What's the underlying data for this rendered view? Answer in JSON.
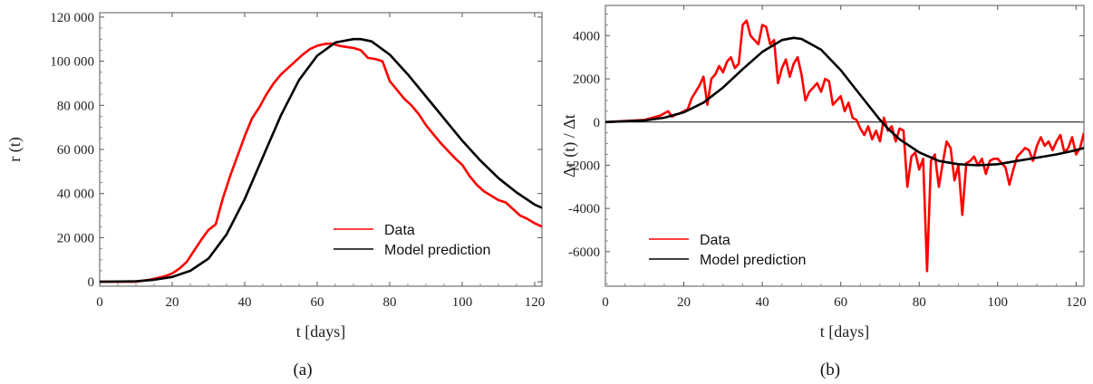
{
  "chart_data": [
    {
      "type": "line",
      "panel_label": "(a)",
      "xlabel": "t [days]",
      "ylabel": "r (t)",
      "xlim": [
        0,
        122
      ],
      "ylim": [
        -2000,
        122000
      ],
      "xticks": [
        0,
        20,
        40,
        60,
        80,
        100,
        120
      ],
      "xtick_labels": [
        "0",
        "20",
        "40",
        "60",
        "80",
        "100",
        "120"
      ],
      "yticks": [
        0,
        20000,
        40000,
        60000,
        80000,
        100000,
        120000
      ],
      "ytick_labels": [
        "0",
        "20 000",
        "40 000",
        "60 000",
        "80 000",
        "100 000",
        "120 000"
      ],
      "zero_line": false,
      "legend": {
        "placement": "bottom-right",
        "entries": [
          "Data",
          "Model prediction"
        ]
      },
      "series": [
        {
          "name": "Data",
          "color": "#ff0000",
          "x": [
            0,
            10,
            14,
            18,
            20,
            22,
            24,
            26,
            28,
            30,
            32,
            34,
            36,
            38,
            40,
            42,
            44,
            46,
            48,
            50,
            52,
            54,
            56,
            58,
            60,
            62,
            64,
            66,
            68,
            70,
            72,
            74,
            76,
            78,
            80,
            82,
            84,
            86,
            88,
            90,
            92,
            94,
            96,
            98,
            100,
            102,
            104,
            106,
            108,
            110,
            112,
            114,
            116,
            118,
            120,
            122
          ],
          "y": [
            0,
            0,
            1000,
            2500,
            3800,
            6000,
            9000,
            14000,
            19000,
            23500,
            26000,
            38000,
            48000,
            57000,
            66000,
            74000,
            79000,
            85000,
            90000,
            94000,
            97000,
            100000,
            103000,
            105500,
            107000,
            107800,
            108000,
            107000,
            106500,
            106000,
            105000,
            101500,
            101000,
            100000,
            91000,
            87000,
            83000,
            80000,
            76000,
            71000,
            67000,
            63000,
            59500,
            56000,
            53000,
            48000,
            44000,
            41000,
            39000,
            37000,
            36000,
            33000,
            30000,
            28500,
            26500,
            25000
          ]
        },
        {
          "name": "Model prediction",
          "color": "#000000",
          "x": [
            0,
            10,
            15,
            20,
            25,
            30,
            35,
            40,
            45,
            50,
            55,
            60,
            65,
            70,
            72,
            75,
            80,
            85,
            90,
            95,
            100,
            105,
            110,
            115,
            120,
            122
          ],
          "y": [
            0,
            200,
            900,
            2200,
            5000,
            10500,
            21500,
            37500,
            56500,
            75500,
            91500,
            102500,
            108500,
            110000,
            110000,
            109000,
            103000,
            94000,
            84000,
            74000,
            64000,
            55000,
            47000,
            40500,
            35000,
            33500
          ]
        }
      ]
    },
    {
      "type": "line",
      "panel_label": "(b)",
      "xlabel": "t [days]",
      "ylabel": "Δr (t) / Δt",
      "xlim": [
        0,
        122
      ],
      "ylim": [
        -7600,
        5400
      ],
      "xticks": [
        0,
        20,
        40,
        60,
        80,
        100,
        120
      ],
      "xtick_labels": [
        "0",
        "20",
        "40",
        "60",
        "80",
        "100",
        "120"
      ],
      "yticks": [
        -6000,
        -4000,
        -2000,
        0,
        2000,
        4000
      ],
      "ytick_labels": [
        "-6000",
        "-4000",
        "-2000",
        "0",
        "2000",
        "4000"
      ],
      "zero_line": true,
      "legend": {
        "placement": "bottom-left",
        "entries": [
          "Data",
          "Model prediction"
        ]
      },
      "series": [
        {
          "name": "Data",
          "color": "#ff0000",
          "x": [
            0,
            10,
            12,
            14,
            16,
            17,
            18,
            19,
            20,
            21,
            22,
            23,
            24,
            25,
            26,
            27,
            28,
            29,
            30,
            31,
            32,
            33,
            34,
            35,
            36,
            37,
            38,
            39,
            40,
            41,
            42,
            43,
            44,
            45,
            46,
            47,
            48,
            49,
            50,
            51,
            52,
            53,
            54,
            55,
            56,
            57,
            58,
            59,
            60,
            61,
            62,
            63,
            64,
            65,
            66,
            67,
            68,
            69,
            70,
            71,
            72,
            73,
            74,
            75,
            76,
            77,
            78,
            79,
            80,
            81,
            82,
            83,
            84,
            85,
            86,
            87,
            88,
            89,
            90,
            91,
            92,
            93,
            94,
            95,
            96,
            97,
            98,
            99,
            100,
            101,
            102,
            103,
            104,
            105,
            106,
            107,
            108,
            109,
            110,
            111,
            112,
            113,
            114,
            115,
            116,
            117,
            118,
            119,
            120,
            121,
            122
          ],
          "y": [
            0,
            100,
            200,
            300,
            500,
            250,
            350,
            400,
            500,
            600,
            1100,
            1400,
            1700,
            2100,
            800,
            2000,
            2200,
            2600,
            2300,
            2800,
            3000,
            2500,
            2700,
            4500,
            4700,
            4000,
            3800,
            3600,
            4500,
            4400,
            3600,
            3800,
            1800,
            2500,
            2900,
            2100,
            2700,
            3000,
            2200,
            1000,
            1400,
            1600,
            1800,
            1400,
            2000,
            1900,
            800,
            1000,
            1200,
            500,
            900,
            200,
            100,
            -300,
            -600,
            -200,
            -800,
            -400,
            -900,
            200,
            -400,
            -200,
            -900,
            -300,
            -400,
            -3000,
            -1600,
            -1400,
            -2200,
            -1700,
            -6900,
            -1800,
            -1500,
            -3000,
            -1900,
            -900,
            -1200,
            -2700,
            -2000,
            -4300,
            -1900,
            -1800,
            -1600,
            -2000,
            -1700,
            -2400,
            -1800,
            -1700,
            -1700,
            -1900,
            -2100,
            -2900,
            -2200,
            -1600,
            -1400,
            -1200,
            -1300,
            -1800,
            -1100,
            -700,
            -1100,
            -900,
            -1300,
            -900,
            -600,
            -1400,
            -1200,
            -700,
            -1500,
            -1200,
            -500
          ]
        },
        {
          "name": "Model prediction",
          "color": "#000000",
          "x": [
            0,
            10,
            15,
            20,
            25,
            30,
            35,
            40,
            45,
            48,
            50,
            55,
            60,
            65,
            70,
            72,
            75,
            80,
            85,
            90,
            95,
            100,
            105,
            110,
            115,
            120,
            122
          ],
          "y": [
            0,
            80,
            200,
            450,
            900,
            1600,
            2450,
            3250,
            3800,
            3900,
            3850,
            3350,
            2400,
            1250,
            100,
            -300,
            -800,
            -1400,
            -1800,
            -1950,
            -2000,
            -1950,
            -1800,
            -1650,
            -1500,
            -1300,
            -1200
          ]
        }
      ]
    }
  ]
}
